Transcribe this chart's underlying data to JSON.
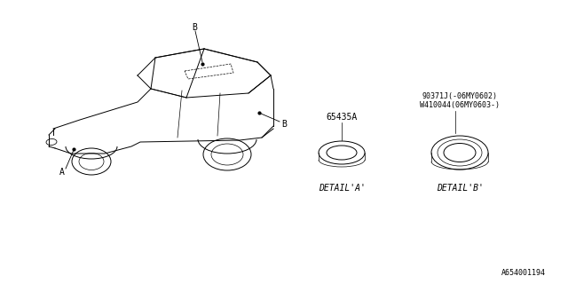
{
  "bg_color": "#ffffff",
  "line_color": "#000000",
  "text_color": "#000000",
  "title_bottom": "A654001194",
  "part_a_label": "65435A",
  "part_b_label1": "90371J(-06MY0602)",
  "part_b_label2": "W410044(06MY0603-)",
  "detail_a_text": "DETAIL'A'",
  "detail_b_text": "DETAIL'B'",
  "label_a": "A",
  "label_b": "B"
}
